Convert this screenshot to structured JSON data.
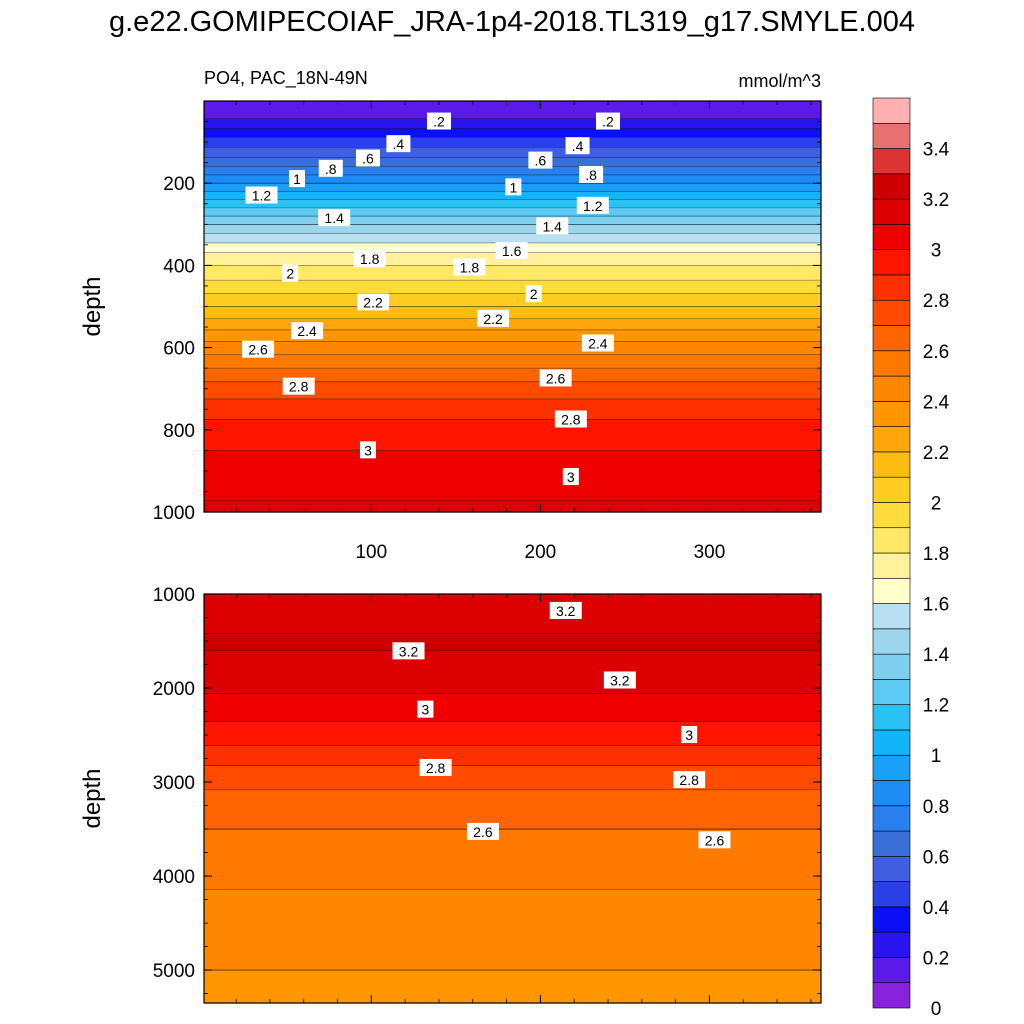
{
  "title": "g.e22.GOMIPECOIAF_JRA-1p4-2018.TL319_g17.SMYLE.004",
  "chart_data": {
    "type": "heatmap",
    "variable_label": "PO4, PAC_18N-49N",
    "units": "mmol/m^3",
    "xlabel": "",
    "ylabel": "depth",
    "x_range": [
      1,
      366
    ],
    "x_ticks": [
      100,
      200,
      300
    ],
    "panels": [
      {
        "name": "upper",
        "depth_range": [
          0,
          1000
        ],
        "depth_ticks": [
          200,
          400,
          600,
          800,
          1000
        ],
        "contour_profile": [
          {
            "depth": 25,
            "value": 0.15
          },
          {
            "depth": 50,
            "value": 0.22
          },
          {
            "depth": 100,
            "value": 0.45
          },
          {
            "depth": 150,
            "value": 0.65
          },
          {
            "depth": 200,
            "value": 0.9
          },
          {
            "depth": 250,
            "value": 1.15
          },
          {
            "depth": 300,
            "value": 1.4
          },
          {
            "depth": 350,
            "value": 1.62
          },
          {
            "depth": 380,
            "value": 1.75
          },
          {
            "depth": 420,
            "value": 1.85
          },
          {
            "depth": 500,
            "value": 2.1
          },
          {
            "depth": 600,
            "value": 2.45
          },
          {
            "depth": 700,
            "value": 2.75
          },
          {
            "depth": 800,
            "value": 2.95
          },
          {
            "depth": 900,
            "value": 3.05
          },
          {
            "depth": 1000,
            "value": 3.12
          }
        ],
        "contour_labels": [
          {
            "x": 140,
            "depth": 50,
            "label": ".2"
          },
          {
            "x": 240,
            "depth": 50,
            "label": ".2"
          },
          {
            "x": 116,
            "depth": 105,
            "label": ".4"
          },
          {
            "x": 222,
            "depth": 110,
            "label": ".4"
          },
          {
            "x": 98,
            "depth": 140,
            "label": ".6"
          },
          {
            "x": 200,
            "depth": 145,
            "label": ".6"
          },
          {
            "x": 76,
            "depth": 165,
            "label": ".8"
          },
          {
            "x": 230,
            "depth": 180,
            "label": ".8"
          },
          {
            "x": 56,
            "depth": 190,
            "label": "1"
          },
          {
            "x": 184,
            "depth": 210,
            "label": "1"
          },
          {
            "x": 35,
            "depth": 230,
            "label": "1.2"
          },
          {
            "x": 231,
            "depth": 255,
            "label": "1.2"
          },
          {
            "x": 78,
            "depth": 285,
            "label": "1.4"
          },
          {
            "x": 207,
            "depth": 305,
            "label": "1.4"
          },
          {
            "x": 183,
            "depth": 365,
            "label": "1.6"
          },
          {
            "x": 99,
            "depth": 385,
            "label": "1.8"
          },
          {
            "x": 158,
            "depth": 405,
            "label": "1.8"
          },
          {
            "x": 52,
            "depth": 420,
            "label": "2"
          },
          {
            "x": 196,
            "depth": 470,
            "label": "2"
          },
          {
            "x": 101,
            "depth": 490,
            "label": "2.2"
          },
          {
            "x": 172,
            "depth": 530,
            "label": "2.2"
          },
          {
            "x": 62,
            "depth": 560,
            "label": "2.4"
          },
          {
            "x": 234,
            "depth": 590,
            "label": "2.4"
          },
          {
            "x": 33,
            "depth": 605,
            "label": "2.6"
          },
          {
            "x": 209,
            "depth": 675,
            "label": "2.6"
          },
          {
            "x": 57,
            "depth": 695,
            "label": "2.8"
          },
          {
            "x": 218,
            "depth": 775,
            "label": "2.8"
          },
          {
            "x": 98,
            "depth": 850,
            "label": "3"
          },
          {
            "x": 218,
            "depth": 915,
            "label": "3"
          }
        ]
      },
      {
        "name": "lower",
        "depth_range": [
          1000,
          5350
        ],
        "depth_ticks": [
          1000,
          2000,
          3000,
          4000,
          5000
        ],
        "contour_profile": [
          {
            "depth": 1000,
            "value": 3.1
          },
          {
            "depth": 1500,
            "value": 3.22
          },
          {
            "depth": 2000,
            "value": 3.12
          },
          {
            "depth": 2500,
            "value": 2.95
          },
          {
            "depth": 3000,
            "value": 2.72
          },
          {
            "depth": 3500,
            "value": 2.6
          },
          {
            "depth": 4000,
            "value": 2.52
          },
          {
            "depth": 4500,
            "value": 2.45
          },
          {
            "depth": 5000,
            "value": 2.4
          },
          {
            "depth": 5350,
            "value": 2.38
          }
        ],
        "contour_labels": [
          {
            "x": 215,
            "depth": 1180,
            "label": "3.2"
          },
          {
            "x": 122,
            "depth": 1610,
            "label": "3.2"
          },
          {
            "x": 247,
            "depth": 1920,
            "label": "3.2"
          },
          {
            "x": 132,
            "depth": 2230,
            "label": "3"
          },
          {
            "x": 288,
            "depth": 2500,
            "label": "3"
          },
          {
            "x": 138,
            "depth": 2850,
            "label": "2.8"
          },
          {
            "x": 288,
            "depth": 2980,
            "label": "2.8"
          },
          {
            "x": 166,
            "depth": 3530,
            "label": "2.6"
          },
          {
            "x": 303,
            "depth": 3620,
            "label": "2.6"
          }
        ]
      }
    ],
    "colorbar": {
      "levels": [
        0,
        0.1,
        0.2,
        0.3,
        0.4,
        0.5,
        0.6,
        0.7,
        0.8,
        0.9,
        1.0,
        1.1,
        1.2,
        1.3,
        1.4,
        1.5,
        1.6,
        1.7,
        1.8,
        1.9,
        2.0,
        2.1,
        2.2,
        2.3,
        2.4,
        2.5,
        2.6,
        2.7,
        2.8,
        2.9,
        3.0,
        3.1,
        3.2,
        3.3,
        3.4,
        3.5
      ],
      "tick_labels": [
        "0",
        "0.2",
        "0.4",
        "0.6",
        "0.8",
        "1",
        "1.2",
        "1.4",
        "1.6",
        "1.8",
        "2",
        "2.2",
        "2.4",
        "2.6",
        "2.8",
        "3",
        "3.2",
        "3.4"
      ],
      "colors": [
        "#8822dd",
        "#5a1ae8",
        "#2a14f0",
        "#0a0ff5",
        "#2a3fe8",
        "#3f5fe0",
        "#3a6fd8",
        "#2a7ff0",
        "#1e8cf5",
        "#1aa0f8",
        "#12b4fa",
        "#2ac2f5",
        "#5ccaf2",
        "#7ed0ee",
        "#9cd6ee",
        "#b8e0f2",
        "#ffffcc",
        "#fff29a",
        "#ffe866",
        "#ffdc3a",
        "#ffcc22",
        "#ffbb11",
        "#ffa60a",
        "#ff9600",
        "#ff8600",
        "#ff7800",
        "#ff6400",
        "#ff4a00",
        "#ff3000",
        "#ff1400",
        "#ee0000",
        "#dd0000",
        "#cc0000",
        "#dd3333",
        "#e97070",
        "#ffb0b0"
      ]
    }
  }
}
